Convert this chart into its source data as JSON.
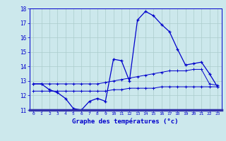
{
  "xlabel": "Graphe des températures (°c)",
  "hours": [
    0,
    1,
    2,
    3,
    4,
    5,
    6,
    7,
    8,
    9,
    10,
    11,
    12,
    13,
    14,
    15,
    16,
    17,
    18,
    19,
    20,
    21,
    22,
    23
  ],
  "temp_actual": [
    12.8,
    12.8,
    12.4,
    12.2,
    11.8,
    11.1,
    11.0,
    11.6,
    11.8,
    11.6,
    14.5,
    14.4,
    13.0,
    17.2,
    17.8,
    17.5,
    16.9,
    16.4,
    15.2,
    14.1,
    14.2,
    14.3,
    13.5,
    12.6
  ],
  "temp_norm_hi": [
    12.8,
    12.8,
    12.8,
    12.8,
    12.8,
    12.8,
    12.8,
    12.8,
    12.8,
    12.9,
    13.0,
    13.1,
    13.2,
    13.3,
    13.4,
    13.5,
    13.6,
    13.7,
    13.7,
    13.7,
    13.8,
    13.8,
    12.8,
    12.7
  ],
  "temp_norm_lo": [
    12.3,
    12.3,
    12.3,
    12.3,
    12.3,
    12.3,
    12.3,
    12.3,
    12.3,
    12.3,
    12.4,
    12.4,
    12.5,
    12.5,
    12.5,
    12.5,
    12.6,
    12.6,
    12.6,
    12.6,
    12.6,
    12.6,
    12.6,
    12.6
  ],
  "ylim": [
    11,
    18
  ],
  "xlim": [
    -0.5,
    23.5
  ],
  "yticks": [
    11,
    12,
    13,
    14,
    15,
    16,
    17,
    18
  ],
  "xticks": [
    0,
    1,
    2,
    3,
    4,
    5,
    6,
    7,
    8,
    9,
    10,
    11,
    12,
    13,
    14,
    15,
    16,
    17,
    18,
    19,
    20,
    21,
    22,
    23
  ],
  "line_color": "#0000cc",
  "bg_color": "#cce8ec",
  "grid_color": "#aacccc",
  "axis_label_color": "#0000cc",
  "tick_color": "#0000cc",
  "border_color": "#0000cc",
  "bottom_bar_color": "#3333aa"
}
